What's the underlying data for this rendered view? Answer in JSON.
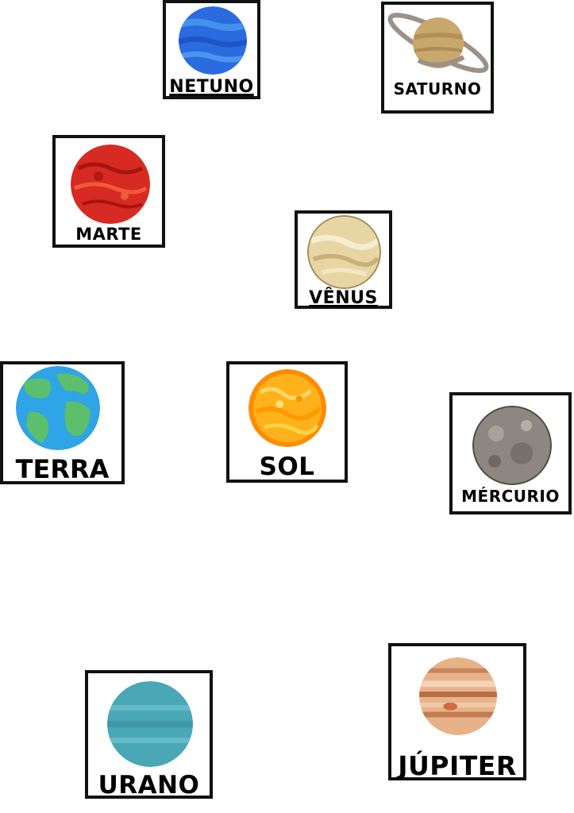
{
  "cards": {
    "netuno": {
      "label": "NETUNO"
    },
    "saturno": {
      "label": "SATURNO"
    },
    "marte": {
      "label": "MARTE"
    },
    "venus": {
      "label": "VÊNUS"
    },
    "terra": {
      "label": "TERRA"
    },
    "sol": {
      "label": "SOL"
    },
    "mercurio": {
      "label": "MÉRCURIO"
    },
    "urano": {
      "label": "URANO"
    },
    "jupiter": {
      "label": "JÚPITER"
    }
  },
  "colors": {
    "border": "#111111",
    "netuno": "#2f6fe0",
    "saturno": "#c9a96b",
    "marte": "#d62a22",
    "venus": "#ead9a8",
    "terra": "#2fa4e6",
    "sol": "#ff9f0a",
    "mercurio": "#8c8780",
    "urano": "#4aa7b5",
    "jupiter": "#e8b289"
  }
}
